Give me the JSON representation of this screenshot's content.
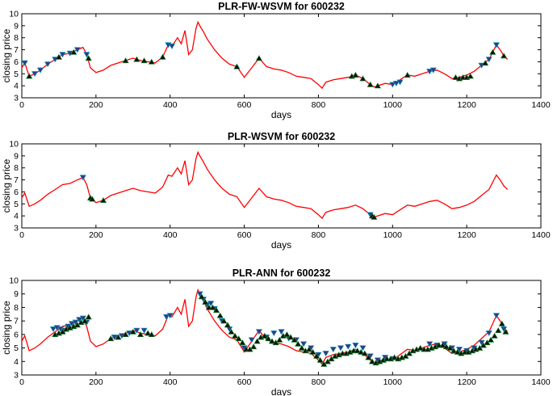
{
  "colors": {
    "line": "#ff0000",
    "sell_marker": "#333a80",
    "sell_edge": "#00a0c8",
    "buy_marker": "#111111",
    "buy_edge": "#1a8a30",
    "axes": "#000000"
  },
  "price_series": {
    "x": [
      0,
      8,
      20,
      35,
      50,
      70,
      90,
      110,
      130,
      150,
      165,
      175,
      185,
      200,
      220,
      240,
      260,
      280,
      300,
      320,
      340,
      360,
      380,
      395,
      405,
      420,
      430,
      440,
      450,
      460,
      470,
      475,
      480,
      490,
      500,
      520,
      540,
      560,
      580,
      600,
      620,
      640,
      660,
      680,
      700,
      720,
      740,
      760,
      780,
      800,
      810,
      820,
      840,
      860,
      880,
      900,
      920,
      940,
      950,
      960,
      980,
      1000,
      1020,
      1040,
      1060,
      1080,
      1100,
      1120,
      1140,
      1160,
      1180,
      1200,
      1220,
      1240,
      1260,
      1280,
      1290,
      1300,
      1310
    ],
    "y": [
      5.5,
      5.9,
      4.8,
      5.0,
      5.3,
      5.8,
      6.2,
      6.6,
      6.7,
      7.0,
      7.2,
      6.6,
      5.5,
      5.1,
      5.3,
      5.7,
      5.9,
      6.1,
      6.3,
      6.1,
      6.0,
      5.9,
      6.4,
      7.4,
      7.3,
      8.0,
      7.5,
      8.6,
      6.6,
      7.0,
      8.8,
      9.3,
      9.0,
      8.5,
      7.9,
      7.0,
      6.3,
      5.8,
      5.6,
      4.7,
      5.5,
      6.3,
      5.6,
      5.4,
      5.3,
      5.1,
      4.8,
      4.7,
      4.6,
      4.1,
      3.8,
      4.3,
      4.5,
      4.6,
      4.7,
      4.9,
      4.6,
      4.1,
      3.9,
      4.0,
      4.2,
      4.1,
      4.5,
      4.9,
      4.8,
      5.0,
      5.2,
      5.3,
      5.0,
      4.6,
      4.7,
      4.9,
      5.2,
      5.7,
      6.2,
      7.4,
      7.0,
      6.5,
      6.2
    ]
  },
  "chart_data": [
    {
      "type": "line",
      "title": "PLR-FW-WSVM for 600232",
      "xlabel": "days",
      "ylabel": "closing price",
      "xlim": [
        0,
        1400
      ],
      "ylim": [
        3,
        10
      ],
      "xticks": [
        0,
        200,
        400,
        600,
        800,
        1000,
        1200,
        1400
      ],
      "yticks": [
        3,
        4,
        5,
        6,
        7,
        8,
        9,
        10
      ],
      "grid": false,
      "series": [
        {
          "series_type": "line"
        },
        {
          "series_type": "scatter",
          "marker": "triangle-down",
          "x": [
            8,
            35,
            50,
            70,
            90,
            110,
            130,
            150,
            175,
            395,
            405,
            1000,
            1010,
            1020,
            1100,
            1110,
            1240,
            1260,
            1280
          ],
          "y": [
            5.9,
            5.0,
            5.3,
            5.8,
            6.2,
            6.6,
            6.7,
            7.0,
            6.6,
            7.4,
            7.3,
            4.1,
            4.2,
            4.3,
            5.2,
            5.3,
            5.7,
            6.2,
            7.4
          ]
        },
        {
          "series_type": "scatter",
          "marker": "triangle-up",
          "x": [
            20,
            100,
            140,
            180,
            280,
            310,
            330,
            350,
            380,
            580,
            640,
            890,
            900,
            920,
            940,
            960,
            1040,
            1170,
            1180,
            1190,
            1200,
            1210,
            1250,
            1270,
            1300
          ],
          "y": [
            4.8,
            6.4,
            6.8,
            6.3,
            6.1,
            6.2,
            6.1,
            6.0,
            6.4,
            5.6,
            6.3,
            4.8,
            4.9,
            4.6,
            4.1,
            4.0,
            4.9,
            4.7,
            4.6,
            4.7,
            4.7,
            4.8,
            5.9,
            6.8,
            6.5
          ]
        }
      ]
    },
    {
      "type": "line",
      "title": "PLR-WSVM for 600232",
      "xlabel": "days",
      "ylabel": "closing price",
      "xlim": [
        0,
        1400
      ],
      "ylim": [
        3,
        10
      ],
      "xticks": [
        0,
        200,
        400,
        600,
        800,
        1000,
        1200,
        1400
      ],
      "yticks": [
        3,
        4,
        5,
        6,
        7,
        8,
        9,
        10
      ],
      "grid": false,
      "series": [
        {
          "series_type": "line"
        },
        {
          "series_type": "scatter",
          "marker": "triangle-down",
          "x": [
            165,
            940
          ],
          "y": [
            7.2,
            4.1
          ]
        },
        {
          "series_type": "scatter",
          "marker": "triangle-up",
          "x": [
            185,
            190,
            220,
            945,
            950
          ],
          "y": [
            5.5,
            5.4,
            5.3,
            4.0,
            3.9
          ]
        }
      ]
    },
    {
      "type": "line",
      "title": "PLR-ANN for 600232",
      "xlabel": "days",
      "ylabel": "closing price",
      "xlim": [
        0,
        1400
      ],
      "ylim": [
        3,
        10
      ],
      "xticks": [
        0,
        200,
        400,
        600,
        800,
        1000,
        1200,
        1400
      ],
      "yticks": [
        3,
        4,
        5,
        6,
        7,
        8,
        9,
        10
      ],
      "grid": false,
      "series": [
        {
          "series_type": "line"
        },
        {
          "series_type": "scatter",
          "marker": "triangle-down",
          "x": [
            85,
            95,
            105,
            115,
            125,
            135,
            145,
            155,
            165,
            175,
            250,
            270,
            290,
            310,
            330,
            390,
            400,
            480,
            490,
            500,
            510,
            520,
            540,
            560,
            600,
            620,
            640,
            660,
            680,
            700,
            720,
            740,
            760,
            780,
            800,
            820,
            840,
            860,
            880,
            900,
            920,
            940,
            960,
            980,
            1000,
            1100,
            1120,
            1140,
            1160,
            1180,
            1200,
            1220,
            1240,
            1260,
            1280,
            1300
          ],
          "y": [
            6.4,
            6.5,
            6.4,
            6.3,
            6.6,
            6.8,
            6.9,
            7.1,
            7.2,
            6.9,
            5.8,
            5.9,
            6.1,
            6.3,
            6.3,
            7.3,
            7.4,
            9.0,
            8.6,
            8.2,
            8.3,
            7.9,
            7.0,
            6.4,
            5.0,
            5.6,
            6.2,
            5.8,
            6.1,
            6.2,
            5.7,
            5.6,
            5.3,
            5.0,
            4.5,
            4.6,
            4.9,
            5.0,
            5.1,
            5.2,
            5.0,
            4.4,
            4.1,
            4.3,
            4.2,
            5.3,
            5.2,
            5.3,
            5.0,
            4.9,
            4.8,
            5.0,
            5.4,
            6.1,
            7.4,
            6.4
          ]
        },
        {
          "series_type": "scatter",
          "marker": "triangle-up",
          "x": [
            90,
            100,
            110,
            120,
            130,
            140,
            150,
            160,
            170,
            180,
            240,
            260,
            280,
            300,
            320,
            340,
            350,
            485,
            495,
            505,
            515,
            525,
            535,
            545,
            555,
            565,
            575,
            585,
            595,
            605,
            615,
            625,
            635,
            645,
            655,
            665,
            675,
            685,
            695,
            705,
            715,
            725,
            735,
            745,
            755,
            765,
            775,
            785,
            795,
            805,
            815,
            825,
            835,
            845,
            855,
            865,
            875,
            885,
            895,
            905,
            915,
            925,
            935,
            945,
            955,
            965,
            975,
            985,
            995,
            1005,
            1015,
            1025,
            1035,
            1045,
            1055,
            1065,
            1075,
            1085,
            1095,
            1105,
            1115,
            1125,
            1135,
            1145,
            1155,
            1165,
            1175,
            1185,
            1195,
            1205,
            1215,
            1225,
            1235,
            1245,
            1255,
            1265,
            1275,
            1285,
            1295,
            1305
          ],
          "y": [
            6.0,
            6.1,
            6.2,
            6.4,
            6.5,
            6.6,
            6.7,
            6.9,
            7.0,
            7.3,
            5.7,
            5.8,
            6.0,
            6.2,
            6.0,
            6.1,
            6.0,
            8.8,
            8.4,
            8.0,
            8.0,
            7.8,
            7.4,
            7.0,
            6.7,
            6.2,
            5.9,
            5.7,
            5.4,
            4.9,
            4.9,
            5.1,
            5.5,
            5.8,
            5.9,
            5.7,
            5.5,
            5.4,
            5.6,
            5.9,
            6.0,
            5.8,
            5.6,
            5.3,
            5.0,
            4.8,
            4.9,
            4.7,
            4.4,
            4.1,
            3.8,
            4.0,
            4.2,
            4.4,
            4.5,
            4.6,
            4.6,
            4.7,
            4.8,
            4.8,
            4.7,
            4.6,
            4.3,
            4.0,
            3.9,
            4.0,
            4.1,
            4.2,
            4.2,
            4.3,
            4.2,
            4.3,
            4.4,
            4.6,
            4.8,
            4.9,
            5.0,
            4.9,
            4.9,
            5.0,
            5.1,
            5.2,
            5.2,
            5.1,
            5.0,
            4.8,
            4.7,
            4.6,
            4.7,
            4.7,
            4.8,
            4.9,
            5.0,
            5.2,
            5.4,
            5.6,
            5.9,
            6.3,
            6.8,
            6.2
          ]
        }
      ]
    }
  ]
}
